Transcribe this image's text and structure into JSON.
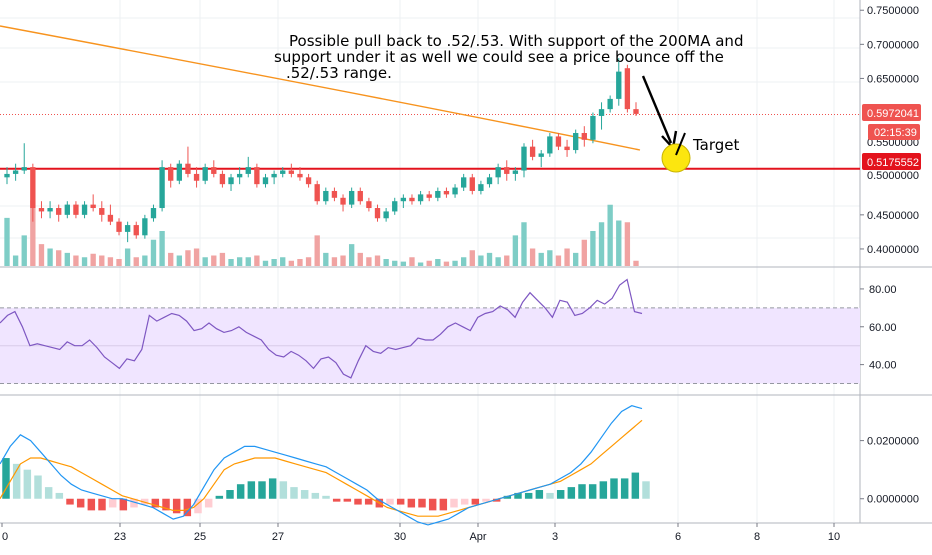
{
  "chart_data": [
    {
      "type": "candlestick",
      "ylim": [
        0.375,
        0.765
      ],
      "y_ticks": [
        "0.7500000",
        "0.7000000",
        "0.6500000",
        "0.4500000",
        "0.4000000"
      ],
      "x_ticks": [
        "0",
        "23",
        "25",
        "27",
        "30",
        "Apr",
        "3",
        "6",
        "8",
        "10"
      ],
      "ohlc": [
        [
          0.505,
          0.52,
          0.495,
          0.51
        ],
        [
          0.51,
          0.525,
          0.5,
          0.515
        ],
        [
          0.515,
          0.555,
          0.51,
          0.52
        ],
        [
          0.52,
          0.525,
          0.44,
          0.46
        ],
        [
          0.46,
          0.47,
          0.445,
          0.455
        ],
        [
          0.455,
          0.47,
          0.445,
          0.46
        ],
        [
          0.46,
          0.465,
          0.44,
          0.45
        ],
        [
          0.45,
          0.47,
          0.445,
          0.465
        ],
        [
          0.465,
          0.47,
          0.445,
          0.45
        ],
        [
          0.45,
          0.47,
          0.445,
          0.465
        ],
        [
          0.465,
          0.48,
          0.455,
          0.46
        ],
        [
          0.46,
          0.47,
          0.44,
          0.45
        ],
        [
          0.45,
          0.465,
          0.435,
          0.44
        ],
        [
          0.44,
          0.445,
          0.42,
          0.425
        ],
        [
          0.425,
          0.44,
          0.41,
          0.435
        ],
        [
          0.435,
          0.44,
          0.415,
          0.42
        ],
        [
          0.42,
          0.45,
          0.415,
          0.445
        ],
        [
          0.445,
          0.465,
          0.44,
          0.46
        ],
        [
          0.46,
          0.53,
          0.455,
          0.52
        ],
        [
          0.52,
          0.525,
          0.49,
          0.5
        ],
        [
          0.5,
          0.53,
          0.495,
          0.525
        ],
        [
          0.525,
          0.55,
          0.505,
          0.51
        ],
        [
          0.51,
          0.52,
          0.49,
          0.5
        ],
        [
          0.5,
          0.525,
          0.495,
          0.52
        ],
        [
          0.52,
          0.53,
          0.505,
          0.51
        ],
        [
          0.51,
          0.515,
          0.49,
          0.495
        ],
        [
          0.495,
          0.51,
          0.485,
          0.505
        ],
        [
          0.505,
          0.52,
          0.495,
          0.51
        ],
        [
          0.51,
          0.535,
          0.505,
          0.52
        ],
        [
          0.52,
          0.525,
          0.49,
          0.495
        ],
        [
          0.495,
          0.51,
          0.49,
          0.505
        ],
        [
          0.505,
          0.515,
          0.495,
          0.51
        ],
        [
          0.51,
          0.52,
          0.505,
          0.515
        ],
        [
          0.515,
          0.525,
          0.505,
          0.51
        ],
        [
          0.51,
          0.52,
          0.5,
          0.505
        ],
        [
          0.505,
          0.51,
          0.49,
          0.495
        ],
        [
          0.495,
          0.5,
          0.465,
          0.47
        ],
        [
          0.47,
          0.49,
          0.465,
          0.485
        ],
        [
          0.485,
          0.49,
          0.47,
          0.475
        ],
        [
          0.475,
          0.48,
          0.455,
          0.465
        ],
        [
          0.465,
          0.49,
          0.46,
          0.485
        ],
        [
          0.485,
          0.49,
          0.465,
          0.47
        ],
        [
          0.47,
          0.475,
          0.455,
          0.46
        ],
        [
          0.46,
          0.465,
          0.44,
          0.445
        ],
        [
          0.445,
          0.46,
          0.44,
          0.455
        ],
        [
          0.455,
          0.475,
          0.45,
          0.47
        ],
        [
          0.47,
          0.48,
          0.46,
          0.475
        ],
        [
          0.475,
          0.48,
          0.465,
          0.47
        ],
        [
          0.47,
          0.485,
          0.465,
          0.48
        ],
        [
          0.48,
          0.485,
          0.47,
          0.475
        ],
        [
          0.475,
          0.49,
          0.47,
          0.485
        ],
        [
          0.485,
          0.49,
          0.475,
          0.48
        ],
        [
          0.48,
          0.495,
          0.475,
          0.49
        ],
        [
          0.49,
          0.51,
          0.485,
          0.505
        ],
        [
          0.505,
          0.51,
          0.48,
          0.485
        ],
        [
          0.485,
          0.5,
          0.48,
          0.495
        ],
        [
          0.495,
          0.51,
          0.49,
          0.505
        ],
        [
          0.505,
          0.525,
          0.495,
          0.52
        ],
        [
          0.52,
          0.53,
          0.5,
          0.51
        ],
        [
          0.51,
          0.52,
          0.5,
          0.515
        ],
        [
          0.515,
          0.555,
          0.505,
          0.55
        ],
        [
          0.55,
          0.56,
          0.53,
          0.535
        ],
        [
          0.535,
          0.545,
          0.52,
          0.54
        ],
        [
          0.54,
          0.57,
          0.535,
          0.565
        ],
        [
          0.565,
          0.57,
          0.545,
          0.55
        ],
        [
          0.55,
          0.56,
          0.535,
          0.545
        ],
        [
          0.545,
          0.575,
          0.54,
          0.57
        ],
        [
          0.57,
          0.58,
          0.55,
          0.56
        ],
        [
          0.56,
          0.6,
          0.555,
          0.595
        ],
        [
          0.595,
          0.615,
          0.575,
          0.605
        ],
        [
          0.605,
          0.625,
          0.6,
          0.62
        ],
        [
          0.62,
          0.68,
          0.61,
          0.66
        ],
        [
          0.665,
          0.67,
          0.6,
          0.605
        ],
        [
          0.605,
          0.615,
          0.595,
          0.598
        ]
      ],
      "volume_max": 0.08,
      "volume": [
        0.055,
        0.012,
        0.035,
        0.075,
        0.025,
        0.02,
        0.018,
        0.015,
        0.012,
        0.01,
        0.014,
        0.012,
        0.01,
        0.008,
        0.02,
        0.01,
        0.012,
        0.03,
        0.04,
        0.015,
        0.012,
        0.018,
        0.02,
        0.01,
        0.012,
        0.015,
        0.008,
        0.01,
        0.01,
        0.012,
        0.006,
        0.008,
        0.01,
        0.006,
        0.008,
        0.01,
        0.035,
        0.015,
        0.01,
        0.012,
        0.025,
        0.015,
        0.01,
        0.012,
        0.008,
        0.006,
        0.005,
        0.01,
        0.004,
        0.006,
        0.008,
        0.005,
        0.006,
        0.01,
        0.018,
        0.012,
        0.015,
        0.01,
        0.012,
        0.035,
        0.05,
        0.02,
        0.015,
        0.018,
        0.012,
        0.02,
        0.015,
        0.03,
        0.04,
        0.05,
        0.07,
        0.052,
        0.05,
        0.006
      ]
    },
    {
      "type": "line",
      "y_ticks": [
        "80.00",
        "60.00",
        "40.00"
      ],
      "ylim": [
        25,
        90
      ],
      "bands": [
        30,
        70
      ],
      "values": [
        62,
        66,
        68,
        60,
        50,
        51,
        50,
        49,
        48,
        52,
        50,
        50,
        53,
        49,
        44,
        41,
        38,
        43,
        42,
        48,
        66,
        63,
        65,
        67,
        66,
        63,
        58,
        59,
        62,
        59,
        57,
        58,
        60,
        57,
        55,
        53,
        48,
        45,
        44,
        47,
        45,
        42,
        38,
        43,
        44,
        41,
        35,
        33,
        42,
        50,
        47,
        46,
        49,
        48,
        49,
        50,
        54,
        53,
        53,
        56,
        60,
        62,
        60,
        58,
        65,
        67,
        68,
        71,
        69,
        65,
        73,
        78,
        74,
        70,
        65,
        74,
        73,
        66,
        67,
        70,
        74,
        72,
        75,
        82,
        85,
        68,
        67
      ]
    },
    {
      "type": "line",
      "y_ticks": [
        "0.0200000",
        "0.0000000"
      ],
      "ylim": [
        -0.008,
        0.035
      ],
      "macd_values": [
        0.012,
        0.018,
        0.022,
        0.02,
        0.016,
        0.012,
        0.008,
        0.005,
        0.003,
        0.002,
        0.001,
        0.0,
        0.0,
        -0.001,
        -0.002,
        -0.003,
        -0.005,
        -0.007,
        -0.006,
        -0.002,
        0.004,
        0.01,
        0.014,
        0.016,
        0.018,
        0.018,
        0.017,
        0.016,
        0.015,
        0.014,
        0.013,
        0.012,
        0.011,
        0.009,
        0.007,
        0.005,
        0.003,
        0.0,
        -0.002,
        -0.004,
        -0.006,
        -0.008,
        -0.009,
        -0.008,
        -0.007,
        -0.005,
        -0.003,
        -0.002,
        -0.001,
        0.0,
        0.001,
        0.002,
        0.003,
        0.004,
        0.005,
        0.007,
        0.009,
        0.012,
        0.016,
        0.021,
        0.026,
        0.03,
        0.032,
        0.031
      ],
      "signal_values": [
        0.0,
        0.006,
        0.012,
        0.014,
        0.014,
        0.013,
        0.012,
        0.011,
        0.009,
        0.007,
        0.005,
        0.003,
        0.001,
        0.0,
        -0.001,
        -0.002,
        -0.003,
        -0.004,
        -0.004,
        -0.003,
        0.0,
        0.005,
        0.01,
        0.012,
        0.013,
        0.014,
        0.014,
        0.014,
        0.013,
        0.012,
        0.011,
        0.01,
        0.009,
        0.007,
        0.005,
        0.003,
        0.001,
        -0.001,
        -0.003,
        -0.004,
        -0.005,
        -0.006,
        -0.006,
        -0.006,
        -0.005,
        -0.004,
        -0.003,
        -0.002,
        -0.001,
        0.0,
        0.001,
        0.002,
        0.003,
        0.004,
        0.005,
        0.006,
        0.008,
        0.01,
        0.012,
        0.015,
        0.018,
        0.021,
        0.024,
        0.027
      ],
      "histogram": [
        0.014,
        0.012,
        0.01,
        0.008,
        0.004,
        0.002,
        -0.002,
        -0.003,
        -0.004,
        -0.004,
        -0.003,
        -0.004,
        -0.003,
        -0.002,
        -0.003,
        -0.004,
        -0.005,
        -0.006,
        -0.005,
        -0.003,
        0.001,
        0.003,
        0.005,
        0.006,
        0.006,
        0.007,
        0.006,
        0.004,
        0.003,
        0.002,
        0.001,
        -0.001,
        -0.001,
        -0.002,
        -0.002,
        -0.003,
        -0.002,
        -0.002,
        -0.003,
        -0.003,
        -0.004,
        -0.004,
        -0.003,
        -0.002,
        -0.002,
        -0.001,
        -0.001,
        0.001,
        0.002,
        0.002,
        0.003,
        0.002,
        0.003,
        0.004,
        0.005,
        0.005,
        0.006,
        0.007,
        0.007,
        0.009,
        0.006
      ]
    }
  ],
  "main_panel": {
    "ma_line_color": "#f7931e",
    "support_line_color": "#e3131d",
    "support_level": 0.5175552,
    "current_price_level": 0.5972041,
    "current_price_label": "0.5972041",
    "countdown_label": "02:15:39",
    "support_label": "0.5175552"
  },
  "annotation": {
    "line1": "Possible pull back to .52/.53. With support of the 200MA and",
    "line2": "support under it as well we could see a price bounce off the",
    "line3": ".52/.53 range.",
    "target_label": "Target",
    "target_circle_color": "#fce60f"
  },
  "colors": {
    "up": "#26a69a",
    "down": "#ef5350",
    "up_volume": "#7ecdc6",
    "down_volume": "#f0a3a2",
    "rsi_line": "#7e57c2",
    "rsi_band": "#f0e5ff",
    "macd_line": "#2196f3",
    "signal_line": "#ff9800"
  }
}
